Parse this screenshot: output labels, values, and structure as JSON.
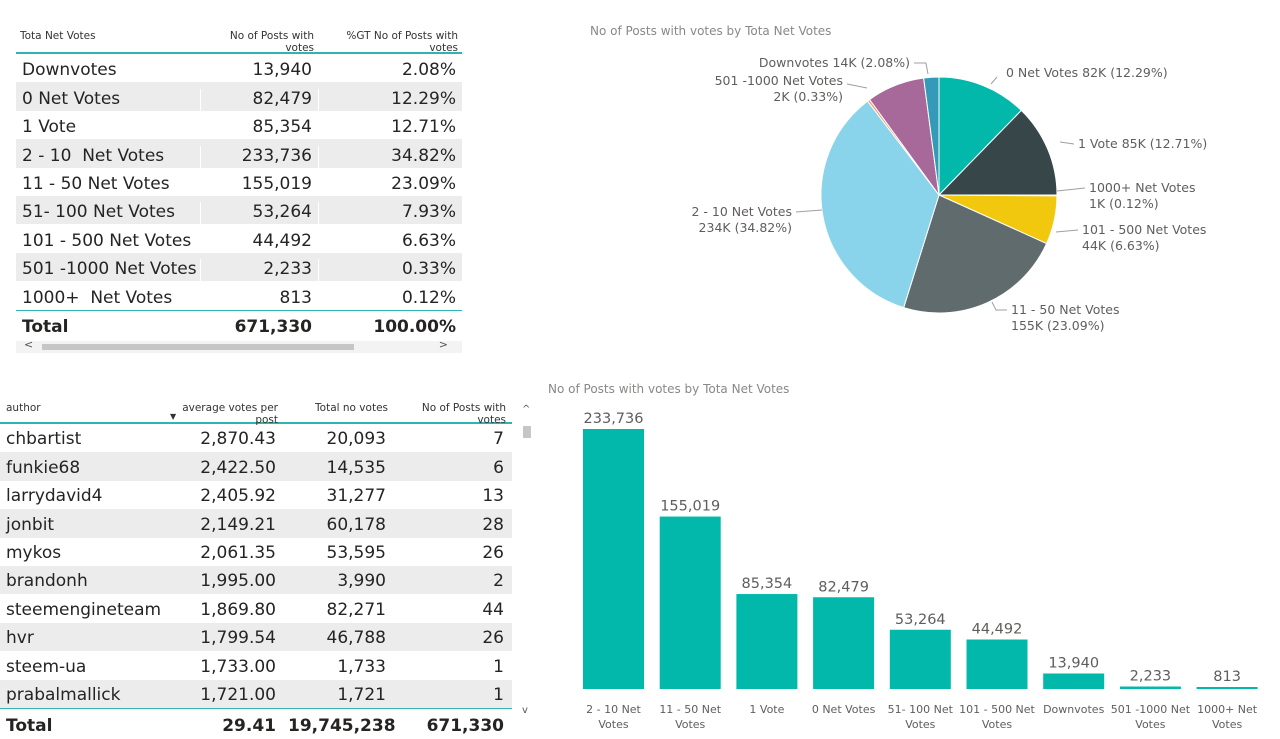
{
  "table1": {
    "headers": [
      "Tota Net Votes",
      "No of Posts with votes",
      "%GT No of Posts with votes"
    ],
    "rows": [
      [
        "Downvotes",
        "13,940",
        "2.08%"
      ],
      [
        "0 Net Votes",
        "82,479",
        "12.29%"
      ],
      [
        "1 Vote",
        "85,354",
        "12.71%"
      ],
      [
        "2 - 10  Net Votes",
        "233,736",
        "34.82%"
      ],
      [
        "11 - 50 Net Votes",
        "155,019",
        "23.09%"
      ],
      [
        "51- 100 Net Votes",
        "53,264",
        "7.93%"
      ],
      [
        "101 - 500 Net Votes",
        "44,492",
        "6.63%"
      ],
      [
        "501 -1000 Net Votes",
        "2,233",
        "0.33%"
      ],
      [
        "1000+  Net Votes",
        "813",
        "0.12%"
      ]
    ],
    "total": [
      "Total",
      "671,330",
      "100.00%"
    ],
    "scroll_left": "<",
    "scroll_right": ">"
  },
  "pie": {
    "title": "No of Posts with votes by Tota Net Votes"
  },
  "table2": {
    "headers": [
      "author",
      "average votes per post",
      "Total no votes",
      "No of Posts with votes"
    ],
    "sort_arrow": "▼",
    "rows": [
      [
        "chbartist",
        "2,870.43",
        "20,093",
        "7"
      ],
      [
        "funkie68",
        "2,422.50",
        "14,535",
        "6"
      ],
      [
        "larrydavid4",
        "2,405.92",
        "31,277",
        "13"
      ],
      [
        "jonbit",
        "2,149.21",
        "60,178",
        "28"
      ],
      [
        "mykos",
        "2,061.35",
        "53,595",
        "26"
      ],
      [
        "brandonh",
        "1,995.00",
        "3,990",
        "2"
      ],
      [
        "steemengineteam",
        "1,869.80",
        "82,271",
        "44"
      ],
      [
        "hvr",
        "1,799.54",
        "46,788",
        "26"
      ],
      [
        "steem-ua",
        "1,733.00",
        "1,733",
        "1"
      ],
      [
        "prabalmallick",
        "1,721.00",
        "1,721",
        "1"
      ]
    ],
    "total": [
      "Total",
      "29.41",
      "19,745,238",
      "671,330"
    ],
    "scroll_up": "^",
    "scroll_down": "v"
  },
  "bar": {
    "title": "No of Posts with votes by Tota Net Votes"
  },
  "chart_data": [
    {
      "type": "pie",
      "title": "No of Posts with votes by Tota Net Votes",
      "slices": [
        {
          "label": "0 Net Votes",
          "value": 82479,
          "display": "0 Net Votes 82K (12.29%)",
          "color": "#01b8aa"
        },
        {
          "label": "1 Vote",
          "value": 85354,
          "display": "1 Vote 85K (12.71%)",
          "color": "#374649"
        },
        {
          "label": "1000+ Net Votes",
          "value": 813,
          "display": [
            "1000+ Net Votes",
            "1K (0.12%)"
          ],
          "color": "#fd625e"
        },
        {
          "label": "101 - 500 Net Votes",
          "value": 44492,
          "display": [
            "101 - 500 Net Votes",
            "44K (6.63%)"
          ],
          "color": "#f2c80f"
        },
        {
          "label": "11 - 50 Net Votes",
          "value": 155019,
          "display": [
            "11 - 50 Net Votes",
            "155K (23.09%)"
          ],
          "color": "#5f6b6d"
        },
        {
          "label": "2 - 10 Net Votes",
          "value": 233736,
          "display": [
            "2 - 10 Net Votes",
            "234K (34.82%)"
          ],
          "color": "#8ad4eb"
        },
        {
          "label": "501 -1000 Net Votes",
          "value": 2233,
          "display": [
            "501 -1000 Net Votes",
            "2K (0.33%)"
          ],
          "color": "#fe9666"
        },
        {
          "label": "51- 100 Net Votes",
          "value": 53264,
          "display": null,
          "color": "#a66999"
        },
        {
          "label": "Downvotes",
          "value": 13940,
          "display": "Downvotes 14K (2.08%)",
          "color": "#3599b8"
        }
      ]
    },
    {
      "type": "bar",
      "title": "No of Posts with votes by Tota Net Votes",
      "categories": [
        [
          "2 - 10 Net",
          "Votes"
        ],
        [
          "11 - 50 Net",
          "Votes"
        ],
        [
          "1 Vote"
        ],
        [
          "0 Net Votes"
        ],
        [
          "51- 100 Net",
          "Votes"
        ],
        [
          "101 - 500 Net",
          "Votes"
        ],
        [
          "Downvotes"
        ],
        [
          "501 -1000 Net",
          "Votes"
        ],
        [
          "1000+ Net",
          "Votes"
        ]
      ],
      "values": [
        233736,
        155019,
        85354,
        82479,
        53264,
        44492,
        13940,
        2233,
        813
      ],
      "value_labels": [
        "233,736",
        "155,019",
        "85,354",
        "82,479",
        "53,264",
        "44,492",
        "13,940",
        "2,233",
        "813"
      ],
      "color": "#01b8aa",
      "ylim": [
        0,
        233736
      ]
    }
  ]
}
